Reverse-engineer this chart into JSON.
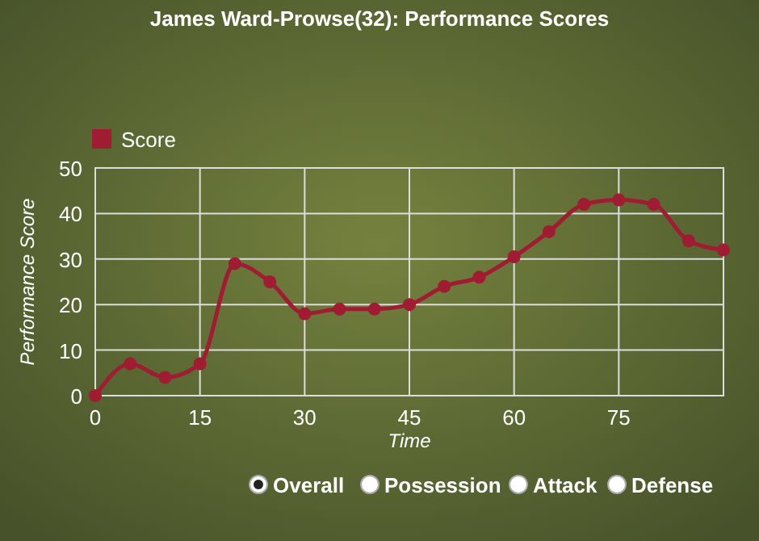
{
  "chart_data": {
    "type": "line",
    "title": "James Ward-Prowse(32): Performance Scores",
    "xlabel": "Time",
    "ylabel": "Performance Score",
    "x": [
      0,
      5,
      10,
      15,
      20,
      25,
      30,
      35,
      40,
      45,
      50,
      55,
      60,
      65,
      70,
      75,
      80,
      85,
      90
    ],
    "series": [
      {
        "name": "Score",
        "color": "#a01c32",
        "values": [
          0,
          7,
          4,
          7,
          29,
          25,
          18,
          19,
          19,
          20,
          24,
          26,
          30.5,
          36,
          42,
          43,
          42,
          34,
          32
        ]
      }
    ],
    "xlim": [
      0,
      90
    ],
    "xticks": [
      0,
      15,
      30,
      45,
      60,
      75
    ],
    "ylim": [
      0,
      50
    ],
    "yticks": [
      0,
      10,
      20,
      30,
      40,
      50
    ],
    "grid": true,
    "legend": "top left",
    "marker": "circle",
    "line_style": "solid",
    "annotations": [
      "Overall",
      "Possession",
      "Attack",
      "Defense"
    ]
  }
}
